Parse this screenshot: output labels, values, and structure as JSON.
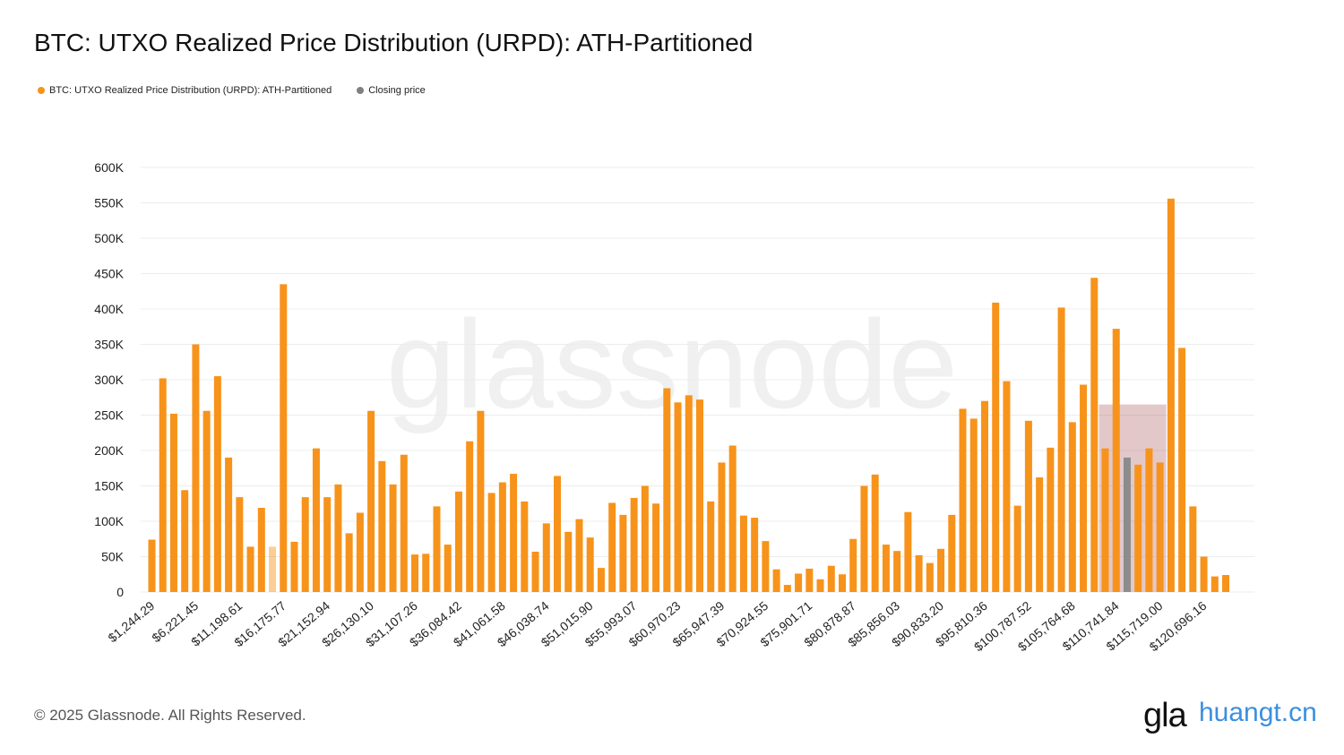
{
  "title": "BTC: UTXO Realized Price Distribution (URPD): ATH-Partitioned",
  "legend": [
    {
      "label": "BTC: UTXO Realized Price Distribution (URPD): ATH-Partitioned",
      "color": "#f7931a"
    },
    {
      "label": "Closing price",
      "color": "#808080"
    }
  ],
  "watermark": "glassnode",
  "footer": "© 2025 Glassnode. All Rights Reserved.",
  "brand": "gla",
  "site_watermark": "huangt.cn",
  "colors": {
    "bar": "#f7931a",
    "closing_bar": "#8c8c8c",
    "highlight": "rgba(176,96,104,0.35)",
    "grid": "#ececec"
  },
  "chart_data": {
    "type": "bar",
    "title": "BTC: UTXO Realized Price Distribution (URPD): ATH-Partitioned",
    "xlabel": "",
    "ylabel": "",
    "ylim": [
      0,
      600000
    ],
    "yticks": [
      0,
      50000,
      100000,
      150000,
      200000,
      250000,
      300000,
      350000,
      400000,
      450000,
      500000,
      550000,
      600000
    ],
    "ytick_labels": [
      "0",
      "50K",
      "100K",
      "150K",
      "200K",
      "250K",
      "300K",
      "350K",
      "400K",
      "450K",
      "500K",
      "550K",
      "600K"
    ],
    "xtick_labels": [
      "$1,244.29",
      "$6,221.45",
      "$11,198.61",
      "$16,175.77",
      "$21,152.94",
      "$26,130.10",
      "$31,107.26",
      "$36,084.42",
      "$41,061.58",
      "$46,038.74",
      "$51,015.90",
      "$55,993.07",
      "$60,970.23",
      "$65,947.39",
      "$70,924.55",
      "$75,901.71",
      "$80,878.87",
      "$85,856.03",
      "$90,833.20",
      "$95,810.36",
      "$100,787.52",
      "$105,764.68",
      "$110,741.84",
      "$115,719.00",
      "$120,696.16"
    ],
    "values": [
      74000,
      302000,
      252000,
      144000,
      350000,
      256000,
      305000,
      190000,
      134000,
      64000,
      119000,
      64000,
      435000,
      71000,
      134000,
      203000,
      134000,
      152000,
      83000,
      112000,
      256000,
      185000,
      152000,
      194000,
      53000,
      54000,
      121000,
      67000,
      142000,
      213000,
      256000,
      140000,
      155000,
      167000,
      128000,
      57000,
      97000,
      164000,
      85000,
      103000,
      77000,
      34000,
      126000,
      109000,
      133000,
      150000,
      125000,
      288000,
      268000,
      278000,
      272000,
      128000,
      183000,
      207000,
      108000,
      105000,
      72000,
      32000,
      10000,
      26000,
      33000,
      18000,
      37000,
      25000,
      75000,
      150000,
      166000,
      67000,
      58000,
      113000,
      52000,
      41000,
      61000,
      109000,
      259000,
      245000,
      270000,
      409000,
      298000,
      122000,
      242000,
      162000,
      204000,
      402000,
      240000,
      293000,
      444000,
      203000,
      372000,
      190000,
      180000,
      203000,
      183000,
      556000,
      345000,
      121000,
      50000,
      22000,
      24000
    ],
    "pale_bar_indices": [
      11
    ],
    "closing_price_index": 89,
    "closing_price_value": 190000,
    "highlight_band": {
      "from_index": 87,
      "to_index": 92,
      "top": 265000
    },
    "grid": true,
    "legend_position": "top-left"
  }
}
